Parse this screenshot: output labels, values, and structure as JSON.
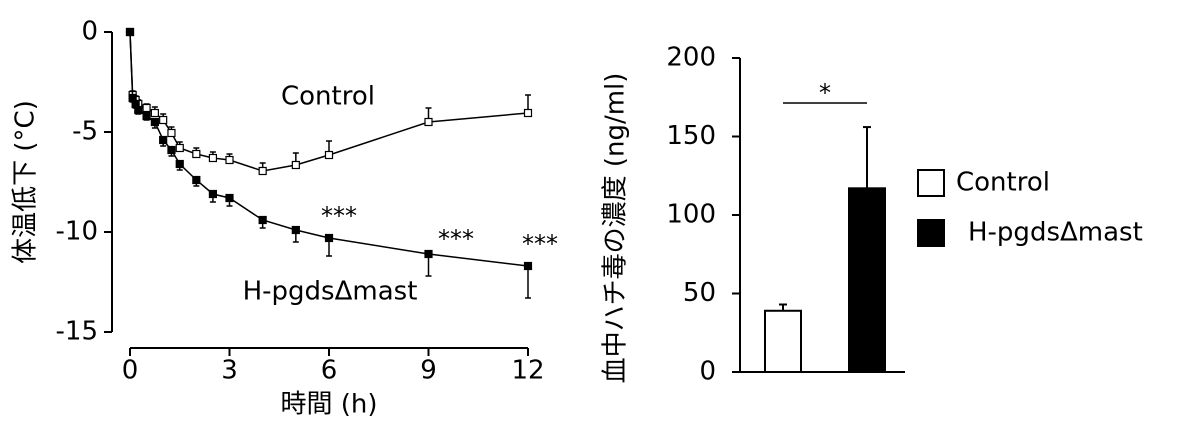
{
  "chart_data": [
    {
      "type": "line",
      "x_label": "時間 (h)",
      "y_label": "体温低下 (°C)",
      "x": [
        0,
        0.08,
        0.17,
        0.25,
        0.5,
        0.75,
        1,
        1.25,
        1.5,
        2,
        2.5,
        3,
        4,
        5,
        6,
        9,
        12
      ],
      "series": [
        {
          "name": "Control",
          "color": "#ffffff",
          "values": [
            0,
            -3.15,
            -3.4,
            -3.6,
            -3.8,
            -4.05,
            -4.4,
            -5.05,
            -5.8,
            -6.1,
            -6.3,
            -6.4,
            -6.95,
            -6.65,
            -6.15,
            -4.5,
            -4.05
          ],
          "errors": [
            0.1,
            0.2,
            0.2,
            0.2,
            0.2,
            0.3,
            0.3,
            0.3,
            0.3,
            0.3,
            0.3,
            0.3,
            0.4,
            0.6,
            0.7,
            0.7,
            0.9
          ]
        },
        {
          "name": "H-pgdsΔmast",
          "color": "#000000",
          "values": [
            0,
            -3.3,
            -3.6,
            -3.9,
            -4.2,
            -4.5,
            -5.4,
            -5.9,
            -6.6,
            -7.4,
            -8.1,
            -8.3,
            -9.4,
            -9.9,
            -10.3,
            -11.1,
            -11.7
          ],
          "errors": [
            0.1,
            0.2,
            0.2,
            0.2,
            0.2,
            0.3,
            0.3,
            0.3,
            0.3,
            0.3,
            0.4,
            0.4,
            0.4,
            0.6,
            0.9,
            1.1,
            1.6
          ]
        }
      ],
      "annotations": [
        "***",
        "***",
        "***"
      ],
      "xlim": [
        0,
        12
      ],
      "xticks": [
        0,
        3,
        6,
        9,
        12
      ],
      "ylim": [
        -15,
        0
      ],
      "yticks": [
        0,
        -5,
        -10,
        -15
      ]
    },
    {
      "type": "bar",
      "y_label": "血中ハチ毒の濃度 (ng/ml)",
      "series": [
        {
          "name": "Control",
          "color": "#ffffff",
          "values": [
            39
          ],
          "errors": [
            4
          ]
        },
        {
          "name": "H-pgdsΔmast",
          "color": "#000000",
          "values": [
            117
          ],
          "errors": [
            39
          ]
        }
      ],
      "annotations": [
        "*"
      ],
      "ylim": [
        0,
        200
      ],
      "yticks": [
        0,
        50,
        100,
        150,
        200
      ]
    }
  ]
}
